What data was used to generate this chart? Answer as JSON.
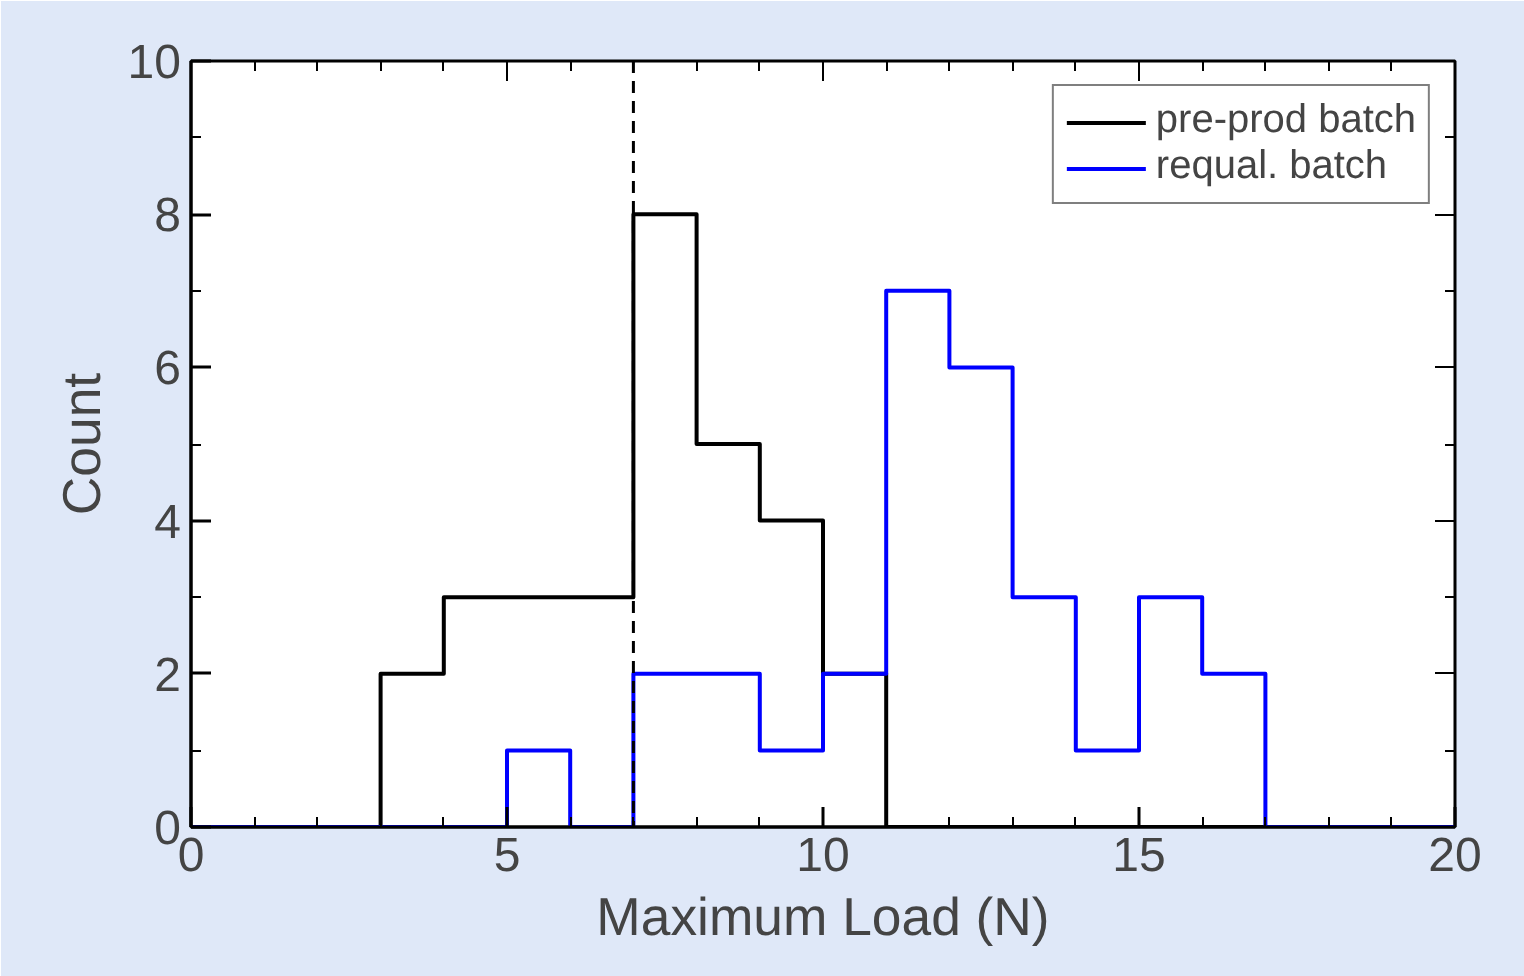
{
  "chart_data": {
    "type": "histogram",
    "xlabel": "Maximum Load (N)",
    "ylabel": "Count",
    "bins": [
      0,
      1,
      2,
      3,
      4,
      5,
      6,
      7,
      8,
      9,
      10,
      11,
      12,
      13,
      14,
      15,
      16,
      17,
      18,
      19,
      20
    ],
    "series": [
      {
        "name": "pre-prod batch",
        "color": "#000000",
        "values": [
          0,
          0,
          0,
          2,
          3,
          3,
          3,
          8,
          5,
          4,
          2,
          0,
          0,
          0,
          0,
          0,
          0,
          0,
          0,
          0
        ]
      },
      {
        "name": "requal. batch",
        "color": "#0000ff",
        "values": [
          0,
          0,
          0,
          0,
          0,
          1,
          0,
          2,
          2,
          1,
          2,
          7,
          6,
          3,
          1,
          3,
          2,
          0,
          0,
          0
        ]
      }
    ],
    "xlim": [
      0,
      20
    ],
    "xticks": [
      0,
      5,
      10,
      15,
      20
    ],
    "ylim": [
      0,
      10
    ],
    "yticks": [
      0,
      2,
      4,
      6,
      8,
      10
    ],
    "ref_lines": [
      {
        "axis": "x",
        "value": 7,
        "color": "#000000",
        "line_style": "dashed"
      }
    ],
    "legend": "top right",
    "grid": false
  }
}
